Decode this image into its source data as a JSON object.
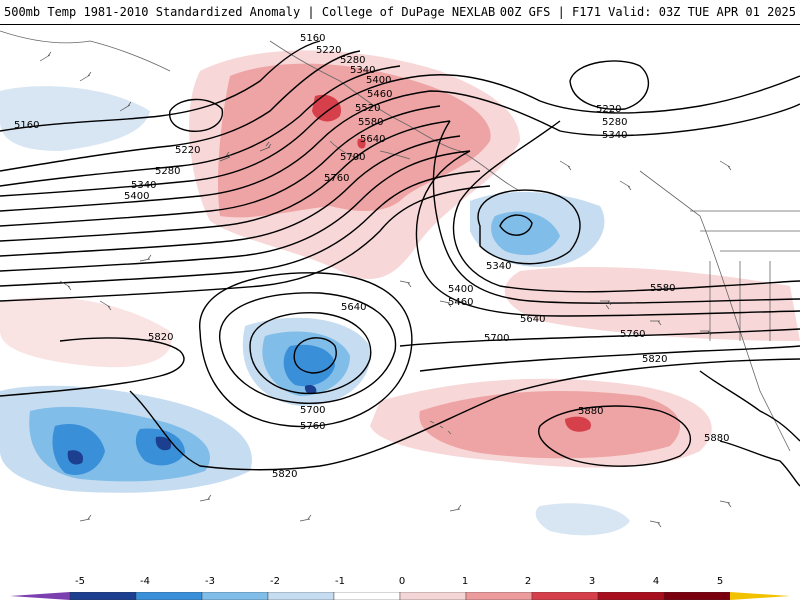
{
  "header": {
    "title_left": "500mb Temp 1981-2010 Standardized Anomaly | College of DuPage NEXLAB",
    "title_right": "00Z GFS | F171 Valid: 03Z TUE APR 01 2025"
  },
  "contour_labels": {
    "c5160a": "5160",
    "c5160b": "5160",
    "c5220a": "5220",
    "c5220b": "5220",
    "c5220c": "5220",
    "c5280a": "5280",
    "c5280b": "5280",
    "c5280c": "5280",
    "c5340a": "5340",
    "c5340b": "5340",
    "c5340c": "5340",
    "c5340d": "5340",
    "c5400a": "5400",
    "c5400b": "5400",
    "c5400c": "5400",
    "c5460a": "5460",
    "c5460b": "5460",
    "c5520": "5520",
    "c5580a": "5580",
    "c5580b": "5580",
    "c5640a": "5640",
    "c5640b": "5640",
    "c5640c": "5640",
    "c5700a": "5700",
    "c5700b": "5700",
    "c5700c": "5700",
    "c5760a": "5760",
    "c5760b": "5760",
    "c5760c": "5760",
    "c5820a": "5820",
    "c5820b": "5820",
    "c5820c": "5820",
    "c5880a": "5880",
    "c5880b": "5880"
  },
  "colorbar": {
    "labels": [
      "-5",
      "-4",
      "-3",
      "-2",
      "-1",
      "0",
      "1",
      "2",
      "3",
      "4",
      "5"
    ],
    "colors": [
      "#7b3fb0",
      "#1d3f8f",
      "#3a8fd9",
      "#80bde8",
      "#c6dcf0",
      "#ffffff",
      "#f5d6d6",
      "#ec9c9c",
      "#d6404a",
      "#a80f1e",
      "#7a0010",
      "#f2c100"
    ]
  }
}
